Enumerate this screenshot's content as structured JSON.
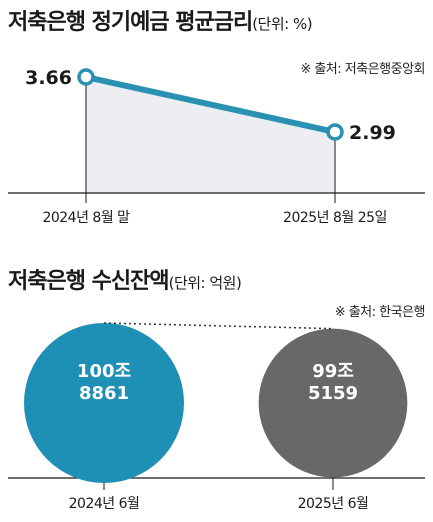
{
  "charts": {
    "rate": {
      "title": "저축은행 정기예금 평균금리",
      "unit": "(단위: %)",
      "source": "※ 출처: 저축은행중앙회"
    },
    "deposits": {
      "title": "저축은행 수신잔액",
      "unit": "(단위: 억원)",
      "source": "※ 출처: 한국은행"
    }
  },
  "chart_data": [
    {
      "type": "line",
      "title": "저축은행 정기예금 평균금리",
      "categories": [
        "2024년 8월 말",
        "2025년 8월 25일"
      ],
      "values": [
        3.66,
        2.99
      ],
      "value_labels": [
        "3.66",
        "2.99"
      ],
      "colors": {
        "line": "#2a91b3",
        "area": "#eceef1"
      }
    },
    {
      "type": "bubble",
      "title": "저축은행 수신잔액",
      "categories": [
        "2024년 6월",
        "2025년 6월"
      ],
      "values": [
        1008861,
        995159
      ],
      "value_labels": [
        [
          "100조",
          "8861"
        ],
        [
          "99조",
          "5159"
        ]
      ],
      "colors": [
        "#1e8fb5",
        "#68686a"
      ]
    }
  ]
}
